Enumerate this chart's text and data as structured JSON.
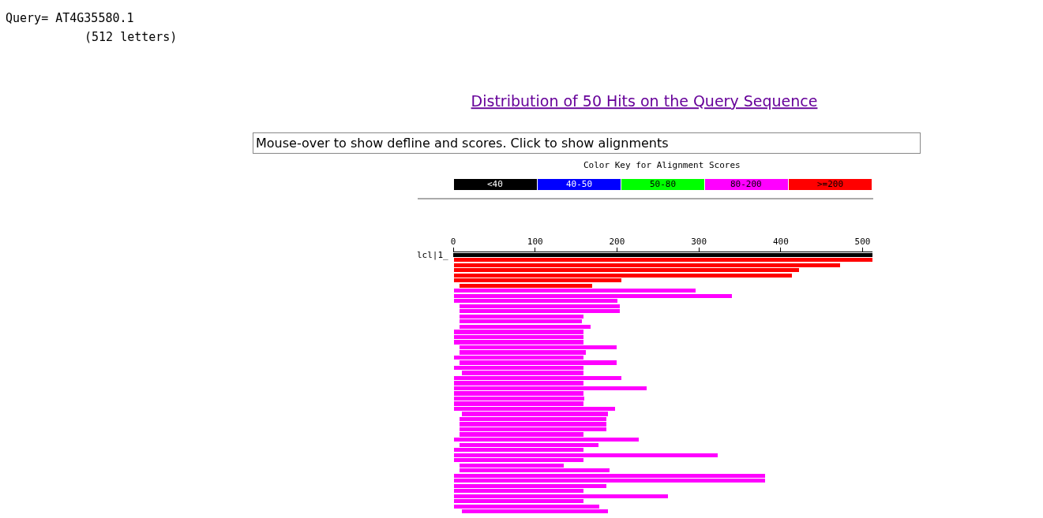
{
  "chart_data": {
    "type": "bar",
    "orientation": "horizontal",
    "title": "Distribution of 50 Hits on the Query Sequence",
    "tick_labels": "x",
    "annotations": [
      "Query= AT4G35580.1",
      "(512 letters)",
      "Mouse-over to show defline and scores. Click to show alignments",
      "Color Key for Alignment Scores",
      "<40",
      "40-50",
      "50-80",
      "80-200",
      ">=200",
      "lcl|1_"
    ],
    "categories": [
      null,
      null,
      null,
      null,
      null,
      null,
      null,
      null,
      null,
      null,
      null,
      null,
      null,
      null,
      null,
      null,
      null,
      null,
      null,
      null,
      null,
      null,
      null,
      null,
      null,
      null,
      null,
      null,
      null,
      null,
      null,
      null,
      null,
      null,
      null,
      null,
      null,
      null,
      null,
      null,
      null,
      null,
      null,
      null,
      null,
      null,
      null,
      null,
      null,
      null,
      null
    ],
    "xlim": [
      0,
      512
    ],
    "xticks": [
      0,
      100,
      200,
      300,
      400,
      500
    ],
    "base": [
      0,
      1,
      1,
      1,
      1,
      1,
      8,
      1,
      1,
      1,
      8,
      8,
      8,
      8,
      8,
      1,
      1,
      1,
      8,
      8,
      1,
      8,
      1,
      11,
      1,
      1,
      1,
      1,
      1,
      1,
      1,
      11,
      8,
      8,
      8,
      8,
      1,
      8,
      1,
      1,
      1,
      8,
      8,
      1,
      1,
      1,
      1,
      1,
      1,
      1,
      11
    ],
    "values": [
      512,
      511,
      471,
      421,
      413,
      204,
      162,
      295,
      339,
      200,
      195,
      195,
      151,
      149,
      160,
      158,
      158,
      158,
      192,
      154,
      158,
      192,
      158,
      148,
      204,
      158,
      235,
      158,
      159,
      158,
      197,
      178,
      179,
      179,
      179,
      151,
      226,
      169,
      158,
      322,
      158,
      127,
      183,
      380,
      380,
      186,
      158,
      261,
      158,
      177,
      178
    ],
    "colors": [
      "#000000",
      "#ff0000",
      "#ff0000",
      "#ff0000",
      "#ff0000",
      "#ff0000",
      "#ff0000",
      "#ff00ff",
      "#ff00ff",
      "#ff00ff",
      "#ff00ff",
      "#ff00ff",
      "#ff00ff",
      "#ff00ff",
      "#ff00ff",
      "#ff00ff",
      "#ff00ff",
      "#ff00ff",
      "#ff00ff",
      "#ff00ff",
      "#ff00ff",
      "#ff00ff",
      "#ff00ff",
      "#ff00ff",
      "#ff00ff",
      "#ff00ff",
      "#ff00ff",
      "#ff00ff",
      "#ff00ff",
      "#ff00ff",
      "#ff00ff",
      "#ff00ff",
      "#ff00ff",
      "#ff00ff",
      "#ff00ff",
      "#ff00ff",
      "#ff00ff",
      "#ff00ff",
      "#ff00ff",
      "#ff00ff",
      "#ff00ff",
      "#ff00ff",
      "#ff00ff",
      "#ff00ff",
      "#ff00ff",
      "#ff00ff",
      "#ff00ff",
      "#ff00ff",
      "#ff00ff",
      "#ff00ff",
      "#ff00ff"
    ]
  }
}
